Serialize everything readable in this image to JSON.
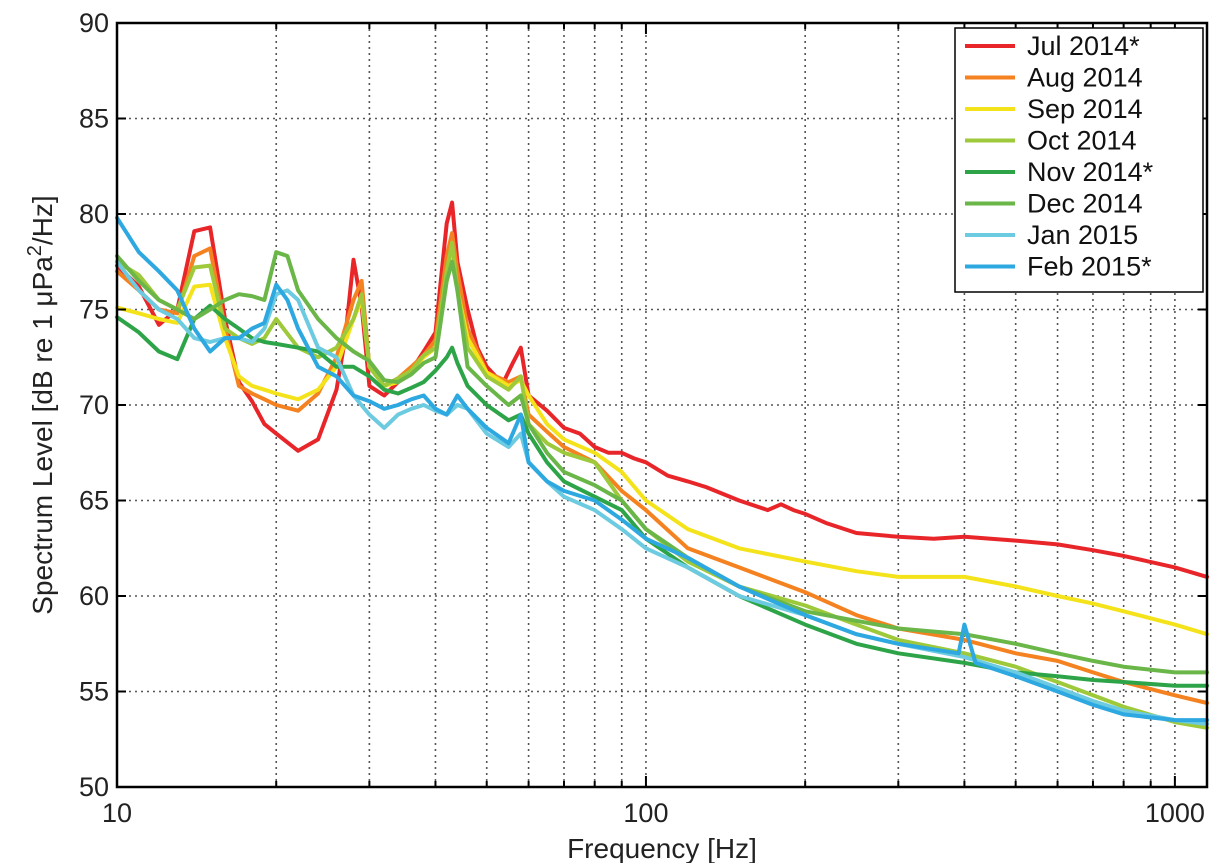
{
  "chart_data": {
    "type": "line",
    "xscale": "log",
    "xlim": [
      10,
      1150
    ],
    "ylim": [
      50,
      90
    ],
    "xlabel": "Frequency [Hz]",
    "ylabel": "Spectrum Level [dB re 1 μPa",
    "ylabel_sup": "2",
    "ylabel_tail": "/Hz]",
    "xticks": [
      10,
      100,
      1000
    ],
    "xtick_labels": [
      "10",
      "100",
      "1000"
    ],
    "yticks": [
      50,
      55,
      60,
      65,
      70,
      75,
      80,
      85,
      90
    ],
    "ytick_labels": [
      "50",
      "55",
      "60",
      "65",
      "70",
      "75",
      "80",
      "85",
      "90"
    ],
    "grid": true,
    "legend": "top-right",
    "series": [
      {
        "name": "Jul 2014*",
        "color": "#e8262a",
        "x": [
          10,
          11,
          12,
          13,
          14,
          15,
          16,
          17,
          18,
          19,
          20,
          22,
          24,
          26,
          27,
          28,
          29,
          30,
          32,
          34,
          36,
          38,
          40,
          42,
          43,
          44,
          46,
          48,
          50,
          52,
          54,
          56,
          58,
          60,
          65,
          70,
          75,
          80,
          85,
          90,
          95,
          100,
          110,
          120,
          130,
          150,
          170,
          180,
          190,
          200,
          220,
          250,
          300,
          350,
          400,
          500,
          600,
          700,
          800,
          1000,
          1150
        ],
        "y": [
          77.3,
          76.2,
          74.2,
          75.0,
          79.1,
          79.3,
          74.5,
          71.2,
          70.2,
          69.0,
          68.5,
          67.6,
          68.2,
          70.8,
          73.5,
          77.6,
          75.2,
          71.0,
          70.5,
          71.2,
          71.8,
          72.8,
          73.8,
          79.5,
          80.6,
          77.5,
          75.0,
          73.0,
          72.0,
          71.5,
          71.3,
          72.2,
          73.0,
          70.5,
          69.7,
          68.8,
          68.5,
          67.8,
          67.5,
          67.5,
          67.2,
          67.0,
          66.3,
          66.0,
          65.7,
          65.0,
          64.5,
          64.8,
          64.5,
          64.3,
          63.8,
          63.3,
          63.1,
          63.0,
          63.1,
          62.9,
          62.7,
          62.4,
          62.1,
          61.5,
          61.0
        ]
      },
      {
        "name": "Aug 2014",
        "color": "#f58220",
        "x": [
          10,
          11,
          12,
          13,
          14,
          15,
          16,
          17,
          18,
          19,
          20,
          22,
          24,
          26,
          28,
          29,
          30,
          32,
          34,
          36,
          38,
          40,
          42,
          43,
          44,
          46,
          50,
          55,
          58,
          60,
          65,
          70,
          80,
          90,
          100,
          120,
          150,
          200,
          250,
          300,
          400,
          500,
          600,
          700,
          800,
          1000,
          1150
        ],
        "y": [
          77.0,
          76.0,
          75.0,
          74.8,
          77.8,
          78.2,
          74.0,
          71.0,
          70.6,
          70.3,
          70.0,
          69.7,
          70.6,
          72.5,
          75.5,
          76.5,
          72.0,
          71.0,
          71.4,
          72.0,
          72.6,
          73.4,
          77.8,
          79.0,
          77.0,
          74.0,
          71.7,
          71.2,
          71.5,
          69.5,
          68.6,
          67.8,
          67.0,
          65.5,
          64.5,
          62.5,
          61.5,
          60.2,
          59.0,
          58.3,
          57.7,
          57.0,
          56.6,
          56.0,
          55.5,
          54.8,
          54.4
        ]
      },
      {
        "name": "Sep 2014",
        "color": "#f4e31a",
        "x": [
          10,
          11,
          12,
          13,
          14,
          15,
          16,
          17,
          18,
          19,
          20,
          22,
          24,
          26,
          28,
          29,
          30,
          32,
          34,
          36,
          38,
          40,
          42,
          43,
          44,
          46,
          50,
          55,
          58,
          60,
          65,
          70,
          80,
          90,
          100,
          120,
          150,
          200,
          250,
          300,
          400,
          500,
          600,
          700,
          800,
          1000,
          1150
        ],
        "y": [
          75.1,
          74.8,
          74.5,
          74.3,
          76.2,
          76.3,
          73.5,
          71.5,
          71.0,
          70.8,
          70.6,
          70.3,
          70.8,
          72.0,
          74.5,
          75.5,
          72.0,
          71.0,
          71.2,
          71.8,
          72.5,
          73.0,
          76.5,
          78.0,
          76.0,
          73.5,
          71.7,
          71.0,
          71.3,
          70.5,
          69.0,
          68.2,
          67.5,
          66.5,
          65.0,
          63.5,
          62.5,
          61.8,
          61.3,
          61.0,
          61.0,
          60.5,
          60.0,
          59.6,
          59.2,
          58.5,
          58.0
        ]
      },
      {
        "name": "Oct 2014",
        "color": "#9dc93b",
        "x": [
          10,
          11,
          12,
          13,
          14,
          15,
          16,
          17,
          18,
          19,
          20,
          22,
          24,
          26,
          28,
          29,
          30,
          32,
          34,
          36,
          38,
          40,
          42,
          43,
          44,
          46,
          50,
          55,
          58,
          60,
          65,
          70,
          80,
          90,
          100,
          120,
          150,
          200,
          250,
          300,
          400,
          500,
          600,
          700,
          800,
          1000,
          1150
        ],
        "y": [
          77.5,
          76.8,
          75.5,
          75.0,
          77.2,
          77.3,
          74.0,
          73.5,
          73.2,
          73.5,
          74.5,
          73.0,
          72.5,
          73.0,
          74.5,
          75.8,
          72.0,
          71.0,
          71.4,
          71.8,
          72.6,
          73.0,
          77.0,
          78.5,
          76.0,
          73.0,
          71.5,
          70.8,
          71.5,
          69.0,
          68.0,
          67.5,
          67.0,
          65.0,
          63.5,
          61.8,
          60.5,
          59.5,
          58.5,
          57.7,
          57.0,
          56.3,
          55.5,
          54.8,
          54.2,
          53.4,
          53.1
        ]
      },
      {
        "name": "Nov 2014*",
        "color": "#2ea449",
        "x": [
          10,
          11,
          12,
          13,
          14,
          15,
          16,
          17,
          18,
          19,
          20,
          22,
          24,
          26,
          28,
          30,
          32,
          34,
          36,
          38,
          40,
          42,
          43,
          44,
          46,
          50,
          55,
          58,
          60,
          65,
          70,
          80,
          90,
          100,
          120,
          150,
          200,
          250,
          300,
          400,
          500,
          600,
          700,
          800,
          1000,
          1150
        ],
        "y": [
          74.6,
          73.8,
          72.8,
          72.4,
          74.5,
          75.2,
          74.5,
          74.0,
          73.5,
          73.3,
          73.2,
          73.0,
          72.8,
          72.0,
          72.0,
          71.5,
          70.8,
          70.6,
          70.9,
          71.2,
          71.8,
          72.5,
          73.0,
          72.2,
          71.0,
          70.0,
          69.2,
          69.5,
          68.5,
          67.0,
          66.0,
          65.2,
          64.5,
          63.0,
          61.5,
          60.0,
          58.5,
          57.5,
          57.0,
          56.5,
          56.0,
          55.8,
          55.6,
          55.5,
          55.3,
          55.3
        ]
      },
      {
        "name": "Dec 2014",
        "color": "#6ab648",
        "x": [
          10,
          11,
          12,
          13,
          14,
          15,
          16,
          17,
          18,
          19,
          20,
          21,
          22,
          24,
          26,
          28,
          30,
          32,
          34,
          36,
          38,
          40,
          42,
          43,
          44,
          46,
          50,
          55,
          58,
          60,
          65,
          70,
          80,
          90,
          100,
          120,
          150,
          200,
          250,
          300,
          400,
          500,
          600,
          700,
          800,
          1000,
          1150
        ],
        "y": [
          77.8,
          76.5,
          75.5,
          75.0,
          74.5,
          75.0,
          75.5,
          75.8,
          75.7,
          75.5,
          78.0,
          77.8,
          76.0,
          74.5,
          73.5,
          72.8,
          72.3,
          71.3,
          71.2,
          71.6,
          72.2,
          72.5,
          76.5,
          77.5,
          76.0,
          72.0,
          71.0,
          70.0,
          70.5,
          69.0,
          67.5,
          66.5,
          65.8,
          65.0,
          63.5,
          62.0,
          60.5,
          59.2,
          58.7,
          58.3,
          58.0,
          57.5,
          57.0,
          56.6,
          56.3,
          56.0,
          56.0
        ]
      },
      {
        "name": "Jan 2015",
        "color": "#6ccbe0",
        "x": [
          10,
          11,
          12,
          13,
          14,
          15,
          16,
          17,
          18,
          19,
          20,
          21,
          22,
          24,
          26,
          28,
          30,
          32,
          34,
          36,
          38,
          40,
          42,
          44,
          46,
          50,
          55,
          58,
          60,
          65,
          70,
          80,
          90,
          100,
          120,
          150,
          200,
          250,
          300,
          400,
          500,
          600,
          700,
          800,
          1000,
          1150
        ],
        "y": [
          77.5,
          76.0,
          75.0,
          74.5,
          73.5,
          73.3,
          73.5,
          73.5,
          73.3,
          74.0,
          75.8,
          76.0,
          75.5,
          73.0,
          72.5,
          70.5,
          69.5,
          68.8,
          69.5,
          69.8,
          70.0,
          69.7,
          69.5,
          70.0,
          69.8,
          68.5,
          67.8,
          68.5,
          67.0,
          66.0,
          65.2,
          64.5,
          63.5,
          62.5,
          61.5,
          60.0,
          59.0,
          58.0,
          57.5,
          56.8,
          56.0,
          55.2,
          54.5,
          54.0,
          53.5,
          53.3
        ]
      },
      {
        "name": "Feb 2015*",
        "color": "#2ea8e0",
        "x": [
          10,
          11,
          12,
          13,
          14,
          15,
          16,
          17,
          18,
          19,
          20,
          21,
          22,
          24,
          26,
          28,
          30,
          32,
          34,
          36,
          38,
          40,
          42,
          44,
          46,
          50,
          55,
          58,
          60,
          65,
          70,
          80,
          90,
          100,
          120,
          150,
          200,
          250,
          300,
          390,
          400,
          420,
          500,
          600,
          700,
          800,
          1000,
          1150
        ],
        "y": [
          79.8,
          78.0,
          77.0,
          76.0,
          74.0,
          72.8,
          73.5,
          73.5,
          74.0,
          74.3,
          76.3,
          75.5,
          74.0,
          72.0,
          71.5,
          70.5,
          70.2,
          69.8,
          70.0,
          70.3,
          70.5,
          69.8,
          69.5,
          70.5,
          69.8,
          68.8,
          68.0,
          69.5,
          67.0,
          66.0,
          65.5,
          65.0,
          64.0,
          63.0,
          62.0,
          60.5,
          59.0,
          58.0,
          57.5,
          57.0,
          58.5,
          56.5,
          55.8,
          55.0,
          54.3,
          53.8,
          53.5,
          53.5
        ]
      }
    ]
  }
}
